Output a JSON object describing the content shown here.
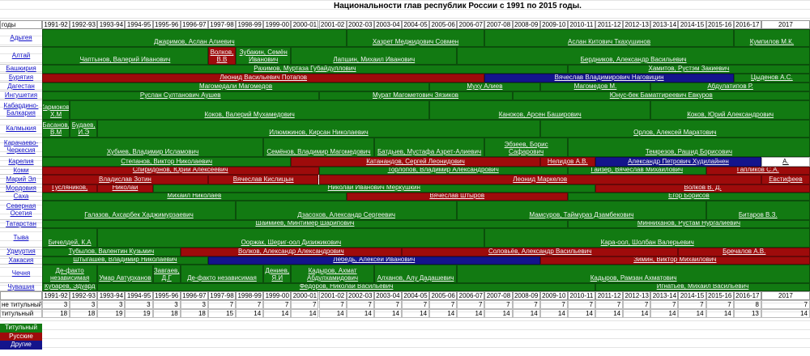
{
  "title": "Национальности глав республик России с 1991 по 2015 годы.",
  "corner_label": "годы",
  "years": [
    "1991-92",
    "1992-93",
    "1993-94",
    "1994-95",
    "1995-96",
    "1996-97",
    "1997-98",
    "1998-99",
    "1999-00",
    "2000-01",
    "2001-02",
    "2002-03",
    "2003-04",
    "2004-05",
    "2005-06",
    "2006-07",
    "2007-08",
    "2008-09",
    "2009-10",
    "2010-11",
    "2011-12",
    "2012-13",
    "2013-14",
    "2014-15",
    "2015-16",
    "2016-17",
    "2017"
  ],
  "regions": [
    {
      "name": "Адыгея",
      "heads": [
        {
          "name": "Джаримов, Аслан Алиевич",
          "from": "1991-92",
          "to": "2001-02",
          "color": "#127a12"
        },
        {
          "name": "Хазрет Меджидович Совмен",
          "from": "2002-03",
          "to": "2006-07",
          "color": "#127a12"
        },
        {
          "name": "Аслан Китович Ткахушинов",
          "from": "2007-08",
          "to": "2015-16",
          "color": "#127a12"
        },
        {
          "name": "Кумпилов М.К.",
          "from": "2016-17",
          "to": "2017",
          "color": "#127a12"
        }
      ]
    },
    {
      "name": "Алтай",
      "heads": [
        {
          "name": "Чаптынов, Валерий Иванович",
          "from": "1991-92",
          "to": "1996-97",
          "color": "#127a12"
        },
        {
          "name": "Волков, В.В",
          "from": "1997-98",
          "to": "1997-98",
          "color": "#9e0b0b"
        },
        {
          "name": "Зубакин, Семён Иванович",
          "from": "1998-99",
          "to": "1999-00",
          "color": "#127a12"
        },
        {
          "name": "Лапшин, Михаил Иванович",
          "from": "2000-01",
          "to": "2005-06",
          "color": "#127a12"
        },
        {
          "name": "Бердников, Александр Васильевич",
          "from": "2006-07",
          "to": "2017",
          "color": "#127a12"
        }
      ]
    },
    {
      "name": "Башкирия",
      "heads": [
        {
          "name": "Рахимов, Муртаза Губайдуллович",
          "from": "1991-92",
          "to": "2009-10",
          "color": "#127a12"
        },
        {
          "name": "Хамитов, Рустэм Закиевич",
          "from": "2010-11",
          "to": "2017",
          "color": "#127a12"
        }
      ]
    },
    {
      "name": "Бурятия",
      "heads": [
        {
          "name": "Леонид Васильевич Потапов",
          "from": "1991-92",
          "to": "2006-07",
          "color": "#9e0b0b"
        },
        {
          "name": "Вячеслав Владимирович Наговицин",
          "from": "2007-08",
          "to": "2015-16",
          "color": "#14148c"
        },
        {
          "name": "Цыденов А.С.",
          "from": "2016-17",
          "to": "2017",
          "color": "#127a12"
        }
      ]
    },
    {
      "name": "Дагестан",
      "heads": [
        {
          "name": "Магомедали Магомедов",
          "from": "1991-92",
          "to": "2004-05",
          "color": "#127a12"
        },
        {
          "name": "Муху Алиев",
          "from": "2005-06",
          "to": "2008-09",
          "color": "#127a12"
        },
        {
          "name": "Магомедов М.",
          "from": "2009-10",
          "to": "2012-13",
          "color": "#127a12"
        },
        {
          "name": "Абдулатипов Р.",
          "from": "2013-14",
          "to": "2017",
          "color": "#127a12"
        }
      ]
    },
    {
      "name": "Ингушетия",
      "heads": [
        {
          "name": "Руслан Султанович Аушев",
          "from": "1991-92",
          "to": "2000-01",
          "color": "#127a12"
        },
        {
          "name": "Мурат Магометович Зязиков",
          "from": "2001-02",
          "to": "2007-08",
          "color": "#127a12"
        },
        {
          "name": "Юнус-бек Баматгиреевич Евкуров",
          "from": "2008-09",
          "to": "2017",
          "color": "#127a12"
        }
      ]
    },
    {
      "name": "Кабардино-Балкария",
      "heads": [
        {
          "name": "Кармоков, Х.М",
          "from": "1991-92",
          "to": "1991-92",
          "color": "#127a12"
        },
        {
          "name": "Коков, Валерий Мухамедович",
          "from": "1992-93",
          "to": "2004-05",
          "color": "#127a12"
        },
        {
          "name": "Каноков, Арсен Баширович",
          "from": "2005-06",
          "to": "2012-13",
          "color": "#127a12"
        },
        {
          "name": "Коков, Юрий Александрович",
          "from": "2013-14",
          "to": "2017",
          "color": "#127a12"
        }
      ]
    },
    {
      "name": "Калмыкия",
      "heads": [
        {
          "name": "Басанов, В.М",
          "from": "1991-92",
          "to": "1991-92",
          "color": "#127a12"
        },
        {
          "name": "Будаев, И.Э",
          "from": "1992-93",
          "to": "1992-93",
          "color": "#127a12"
        },
        {
          "name": "Илюмжинов, Кирсан Николаевич",
          "from": "1993-94",
          "to": "2008-09",
          "color": "#127a12"
        },
        {
          "name": "Орлов, Алексей Маратович",
          "from": "2009-10",
          "to": "2017",
          "color": "#127a12"
        }
      ]
    },
    {
      "name": "Карачаево-Черкесия",
      "heads": [
        {
          "name": "Хубиев, Владимир Исламович",
          "from": "1991-92",
          "to": "1998-99",
          "color": "#127a12"
        },
        {
          "name": "Семёнов, Владимир Магомедович",
          "from": "1999-00",
          "to": "2002-03",
          "color": "#127a12"
        },
        {
          "name": "Батдыев, Мустафа Азрет-Алиевич",
          "from": "2003-04",
          "to": "2006-07",
          "color": "#127a12"
        },
        {
          "name": "Эбзеев, Борис Сафарович",
          "from": "2007-08",
          "to": "2009-10",
          "color": "#127a12"
        },
        {
          "name": "Темрезов, Рашид Борисович",
          "from": "2010-11",
          "to": "2017",
          "color": "#127a12"
        }
      ]
    },
    {
      "name": "Карелия",
      "heads": [
        {
          "name": "Степанов, Виктор Николаевич",
          "from": "1991-92",
          "to": "1999-00",
          "color": "#127a12"
        },
        {
          "name": "Катанандов, Сергей Леонидович",
          "from": "2000-01",
          "to": "2008-09",
          "color": "#9e0b0b"
        },
        {
          "name": "Нелидов А.В.",
          "from": "2009-10",
          "to": "2010-11",
          "color": "#9e0b0b"
        },
        {
          "name": "Александр Петрович Худилайнен",
          "from": "2011-12",
          "to": "2016-17",
          "color": "#14148c"
        },
        {
          "name": "Парфенчиков А.",
          "from": "2017",
          "to": "2017",
          "color": "#ffffff"
        }
      ]
    },
    {
      "name": "Коми",
      "heads": [
        {
          "name": "Спиридонов, Юрий Алексеевич",
          "from": "1991-92",
          "to": "2000-01",
          "color": "#9e0b0b"
        },
        {
          "name": "Торлопов, Владимир Александрович",
          "from": "2001-02",
          "to": "2009-10",
          "color": "#127a12"
        },
        {
          "name": "Гайзер, Вячеслав Михайлович",
          "from": "2010-11",
          "to": "2014-15",
          "color": "#127a12"
        },
        {
          "name": "Гапликов С.А.",
          "from": "2015-16",
          "to": "2017",
          "color": "#9e0b0b"
        }
      ]
    },
    {
      "name": "Марий Эл",
      "heads": [
        {
          "name": "Владислав Зотин",
          "from": "1991-92",
          "to": "1996-97",
          "color": "#9e0b0b"
        },
        {
          "name": "Вячеслав Кислицын",
          "from": "1997-98",
          "to": "2000-01",
          "color": "#9e0b0b"
        },
        {
          "name": "Леонид Маркелов",
          "from": "2001-02",
          "to": "2016-17",
          "color": "#9e0b0b"
        },
        {
          "name": "Евстифеев",
          "from": "2017",
          "to": "2017",
          "color": "#9e0b0b"
        }
      ]
    },
    {
      "name": "Мордовия",
      "heads": [
        {
          "name": "Гусляников,",
          "from": "1991-92",
          "to": "1992-93",
          "color": "#9e0b0b"
        },
        {
          "name": "Бирюков, Николай",
          "from": "1993-94",
          "to": "1994-95",
          "color": "#9e0b0b"
        },
        {
          "name": "Николай Иванович Меркушкин",
          "from": "1995-96",
          "to": "2010-11",
          "color": "#127a12"
        },
        {
          "name": "Волков В. Д.",
          "from": "2011-12",
          "to": "2017",
          "color": "#9e0b0b"
        }
      ]
    },
    {
      "name": "Саха",
      "heads": [
        {
          "name": "Михаил Николаев",
          "from": "1991-92",
          "to": "2001-02",
          "color": "#127a12"
        },
        {
          "name": "Вячеслав Штыров",
          "from": "2002-03",
          "to": "2009-10",
          "color": "#9e0b0b"
        },
        {
          "name": "Егор Борисов",
          "from": "2010-11",
          "to": "2017",
          "color": "#127a12"
        }
      ]
    },
    {
      "name": "Северная Осетия",
      "heads": [
        {
          "name": "Галазов, Ахсарбек Хаджимурзаевич",
          "from": "1991-92",
          "to": "1997-98",
          "color": "#127a12"
        },
        {
          "name": "Дзасохов, Александр Сергеевич",
          "from": "1998-99",
          "to": "2005-06",
          "color": "#127a12"
        },
        {
          "name": "Мамсуров, Таймураз Дзамбекович",
          "from": "2006-07",
          "to": "2014-15",
          "color": "#127a12"
        },
        {
          "name": "Битаров В.З.",
          "from": "2015-16",
          "to": "2017",
          "color": "#127a12"
        }
      ]
    },
    {
      "name": "Татарстан",
      "heads": [
        {
          "name": "Шаймиев, Минтимер Шарипович",
          "from": "1991-92",
          "to": "2009-10",
          "color": "#127a12"
        },
        {
          "name": "Минниханов, Рустам Нургалиевич",
          "from": "2010-11",
          "to": "2017",
          "color": "#127a12"
        }
      ]
    },
    {
      "name": "Тыва",
      "heads": [
        {
          "name": "Бичелдей, К.А",
          "from": "1991-92",
          "to": "1992-93",
          "color": "#127a12"
        },
        {
          "name": "Ооржак, Шериг-оол Дизижикович",
          "from": "1993-94",
          "to": "2006-07",
          "color": "#127a12"
        },
        {
          "name": "Кара-оол, Шолбан Валерьевич",
          "from": "2007-08",
          "to": "2017",
          "color": "#127a12"
        }
      ]
    },
    {
      "name": "Удмуртия",
      "heads": [
        {
          "name": "Тубылов, Валентин Кузьмич",
          "from": "1991-92",
          "to": "1995-96",
          "color": "#127a12"
        },
        {
          "name": "Волков, Александр Александрович",
          "from": "1996-97",
          "to": "2003-04",
          "color": "#9e0b0b"
        },
        {
          "name": "Соловьёв, Александр Васильевич",
          "from": "2004-05",
          "to": "2013-14",
          "color": "#9e0b0b"
        },
        {
          "name": "Бречалов А.В.",
          "from": "2014-15",
          "to": "2017",
          "color": "#9e0b0b"
        }
      ]
    },
    {
      "name": "Хакасия",
      "heads": [
        {
          "name": "Штыгашев, Владимир Николаевич",
          "from": "1991-92",
          "to": "1996-97",
          "color": "#127a12"
        },
        {
          "name": "Лебедь, Алексей Иванович",
          "from": "1997-98",
          "to": "2008-09",
          "color": "#14148c"
        },
        {
          "name": "Зимин, Виктор Михайлович",
          "from": "2009-10",
          "to": "2017",
          "color": "#9e0b0b"
        }
      ]
    },
    {
      "name": "Чечня",
      "heads": [
        {
          "name": "Де-факто независимая",
          "from": "1991-92",
          "to": "1992-93",
          "color": "#127a12"
        },
        {
          "name": "Умар Автурханов",
          "from": "1993-94",
          "to": "1994-95",
          "color": "#127a12"
        },
        {
          "name": "Завгаев, Д.Г",
          "from": "1995-96",
          "to": "1995-96",
          "color": "#127a12"
        },
        {
          "name": "Де-факто независимая",
          "from": "1996-97",
          "to": "1998-99",
          "color": "#127a12"
        },
        {
          "name": "Дениев, Я.И",
          "from": "1999-00",
          "to": "1999-00",
          "color": "#127a12"
        },
        {
          "name": "Кадыров, Ахмат Абдулхамидович",
          "from": "2000-01",
          "to": "2002-03",
          "color": "#127a12"
        },
        {
          "name": "Алханов, Алу Дадашевич",
          "from": "2003-04",
          "to": "2005-06",
          "color": "#127a12"
        },
        {
          "name": "Кадыров, Рамзан Ахматович",
          "from": "2006-07",
          "to": "2017",
          "color": "#127a12"
        }
      ]
    },
    {
      "name": "Чувашия",
      "heads": [
        {
          "name": "Кубарев, Эдуард",
          "from": "1991-92",
          "to": "1992-93",
          "color": "#127a12"
        },
        {
          "name": "Фёдоров, Николай Васильевич",
          "from": "1993-94",
          "to": "2010-11",
          "color": "#127a12"
        },
        {
          "name": "Игнатьев, Михаил Васильевич",
          "from": "2011-12",
          "to": "2017",
          "color": "#127a12"
        }
      ]
    }
  ],
  "counts": [
    {
      "label": "не титульный",
      "values": [
        3,
        3,
        3,
        3,
        3,
        3,
        7,
        7,
        7,
        7,
        7,
        7,
        7,
        7,
        7,
        7,
        7,
        7,
        7,
        7,
        7,
        7,
        7,
        7,
        7,
        8,
        7
      ]
    },
    {
      "label": "титульный",
      "values": [
        18,
        18,
        19,
        19,
        18,
        18,
        15,
        14,
        14,
        14,
        14,
        14,
        14,
        14,
        14,
        14,
        14,
        14,
        14,
        14,
        14,
        14,
        14,
        14,
        14,
        13,
        14
      ]
    }
  ],
  "legend": [
    {
      "label": "Титульный",
      "color": "#127a12"
    },
    {
      "label": "Русские",
      "color": "#9e0b0b"
    },
    {
      "label": "Другие",
      "color": "#14148c"
    }
  ]
}
